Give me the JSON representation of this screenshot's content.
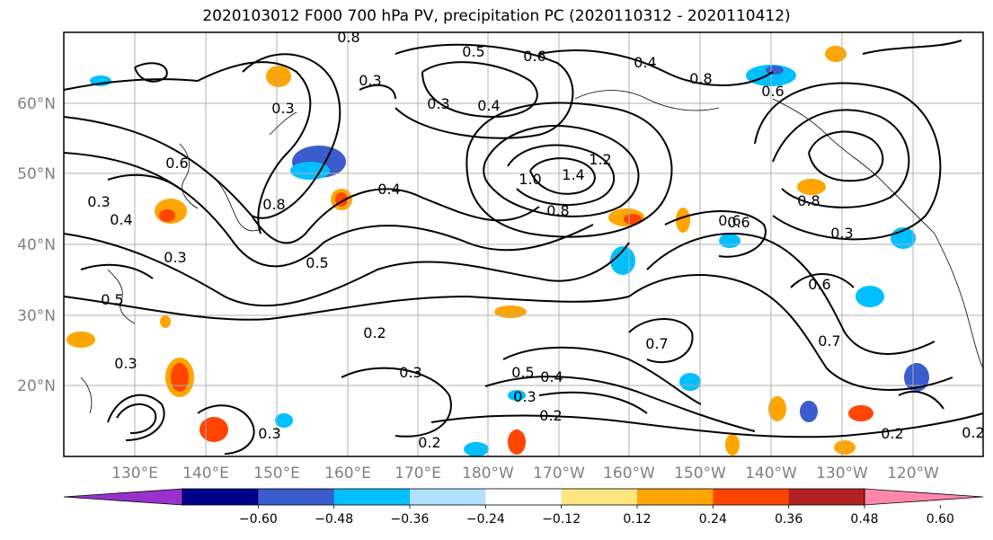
{
  "title": "2020103012 F000 700 hPa PV, precipitation PC (2020110312 - 2020110412)",
  "lat_labels": [
    "60°N",
    "50°N",
    "40°N",
    "30°N",
    "20°N"
  ],
  "lon_labels": [
    "130°E",
    "140°E",
    "150°E",
    "160°E",
    "170°E",
    "180°W",
    "170°W",
    "160°W",
    "150°W",
    "140°W",
    "130°W",
    "120°W"
  ],
  "contour_labels": [
    "0.8",
    "0.5",
    "0.6",
    "0.4",
    "0.3",
    "0.4",
    "0.3",
    "0.8",
    "0.6",
    "0.3",
    "0.6",
    "0.3",
    "0.4",
    "1.4",
    "1.2",
    "1.0",
    "0.8",
    "0.6",
    "0.8",
    "0.3",
    "0.8",
    "0.7",
    "0.6",
    "0.5",
    "0.3",
    "0.3",
    "0.2",
    "0.3",
    "0.2",
    "0.5",
    "0.4",
    "0.3",
    "0.2",
    "0.6",
    "0.7",
    "0.2",
    "0.2",
    "0.5",
    "0.4",
    "0.3"
  ],
  "colorbar": {
    "ticks": [
      "−0.60",
      "−0.48",
      "−0.36",
      "−0.24",
      "−0.12",
      "0.12",
      "0.24",
      "0.36",
      "0.48",
      "0.60"
    ],
    "colors": [
      "#9932cc",
      "#00008b",
      "#3a5ccc",
      "#00bfff",
      "#b0e2ff",
      "#ffffff",
      "#ffe680",
      "#ffa500",
      "#ff4500",
      "#b22222",
      "#ff88aa"
    ]
  },
  "colors": {
    "map_line": "#000000",
    "grid": "#b0b0b0",
    "label_gray": "#808080"
  }
}
